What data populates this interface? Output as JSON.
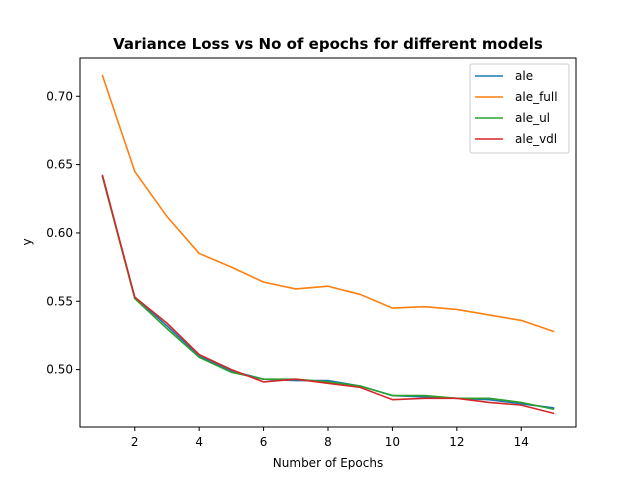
{
  "chart_data": {
    "type": "line",
    "title": "Variance Loss vs No of epochs for different models",
    "xlabel": "Number of Epochs",
    "ylabel": "y",
    "xlim": [
      0.3,
      15.7
    ],
    "ylim": [
      0.458,
      0.728
    ],
    "xticks": [
      2,
      4,
      6,
      8,
      10,
      12,
      14
    ],
    "yticks": [
      0.5,
      0.55,
      0.6,
      0.65,
      0.7
    ],
    "ytick_labels": [
      "0.50",
      "0.55",
      "0.60",
      "0.65",
      "0.70"
    ],
    "grid": false,
    "legend_position": "top-right",
    "x": [
      1,
      2,
      3,
      4,
      5,
      6,
      7,
      8,
      9,
      10,
      11,
      12,
      13,
      14,
      15
    ],
    "series": [
      {
        "name": "ale",
        "color": "#1f77b4",
        "values": [
          0.641,
          0.553,
          0.532,
          0.51,
          0.499,
          0.493,
          0.492,
          0.492,
          0.488,
          0.481,
          0.48,
          0.479,
          0.478,
          0.475,
          0.472
        ]
      },
      {
        "name": "ale_full",
        "color": "#ff7f0e",
        "values": [
          0.715,
          0.645,
          0.612,
          0.585,
          0.575,
          0.564,
          0.559,
          0.561,
          0.555,
          0.545,
          0.546,
          0.544,
          0.54,
          0.536,
          0.528
        ]
      },
      {
        "name": "ale_ul",
        "color": "#2ca02c",
        "values": [
          0.641,
          0.552,
          0.53,
          0.509,
          0.498,
          0.493,
          0.493,
          0.491,
          0.488,
          0.481,
          0.481,
          0.479,
          0.479,
          0.476,
          0.471
        ]
      },
      {
        "name": "ale_vdl",
        "color": "#d62728",
        "values": [
          0.642,
          0.553,
          0.534,
          0.511,
          0.5,
          0.491,
          0.493,
          0.49,
          0.487,
          0.478,
          0.479,
          0.479,
          0.476,
          0.474,
          0.468
        ]
      }
    ]
  }
}
